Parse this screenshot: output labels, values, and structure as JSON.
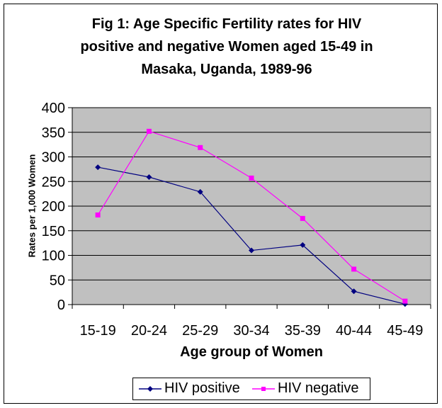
{
  "chart_data": {
    "type": "line",
    "title": "Fig 1: Age Specific Fertility rates for HIV positive and negative Women aged 15-49 in Masaka,  Uganda, 1989-96",
    "title_lines": [
      "Fig 1: Age Specific Fertility rates for HIV",
      "positive and negative Women aged 15-49 in",
      "Masaka,  Uganda, 1989-96"
    ],
    "xlabel": "Age group of Women",
    "ylabel": "Rates per 1,000 Women",
    "categories": [
      "15-19",
      "20-24",
      "25-29",
      "30-34",
      "35-39",
      "40-44",
      "45-49"
    ],
    "ylim": [
      0,
      400
    ],
    "yticks": [
      0,
      50,
      100,
      150,
      200,
      250,
      300,
      350,
      400
    ],
    "grid": true,
    "legend_position": "bottom",
    "series": [
      {
        "name": "HIV positive",
        "color": "#000080",
        "marker": "diamond",
        "values": [
          279,
          259,
          229,
          110,
          121,
          27,
          1
        ]
      },
      {
        "name": "HIV negative",
        "color": "#FF00FF",
        "marker": "square",
        "values": [
          182,
          352,
          319,
          257,
          175,
          72,
          7
        ]
      }
    ],
    "plot_background": "#C0C0C0"
  }
}
